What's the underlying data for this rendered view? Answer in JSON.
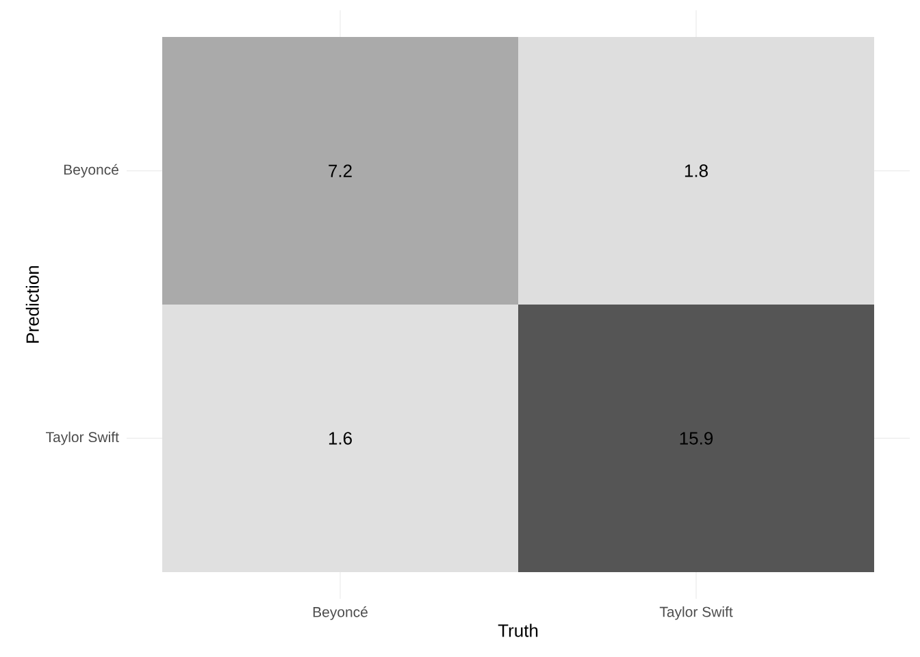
{
  "chart_data": {
    "type": "heatmap",
    "xlabel": "Truth",
    "ylabel": "Prediction",
    "categories": [
      "Beyoncé",
      "Taylor Swift"
    ],
    "y_categories": [
      "Beyoncé",
      "Taylor Swift"
    ],
    "cells": [
      [
        7.2,
        1.8
      ],
      [
        1.6,
        15.9
      ]
    ],
    "data_labels": true,
    "grid": true
  }
}
